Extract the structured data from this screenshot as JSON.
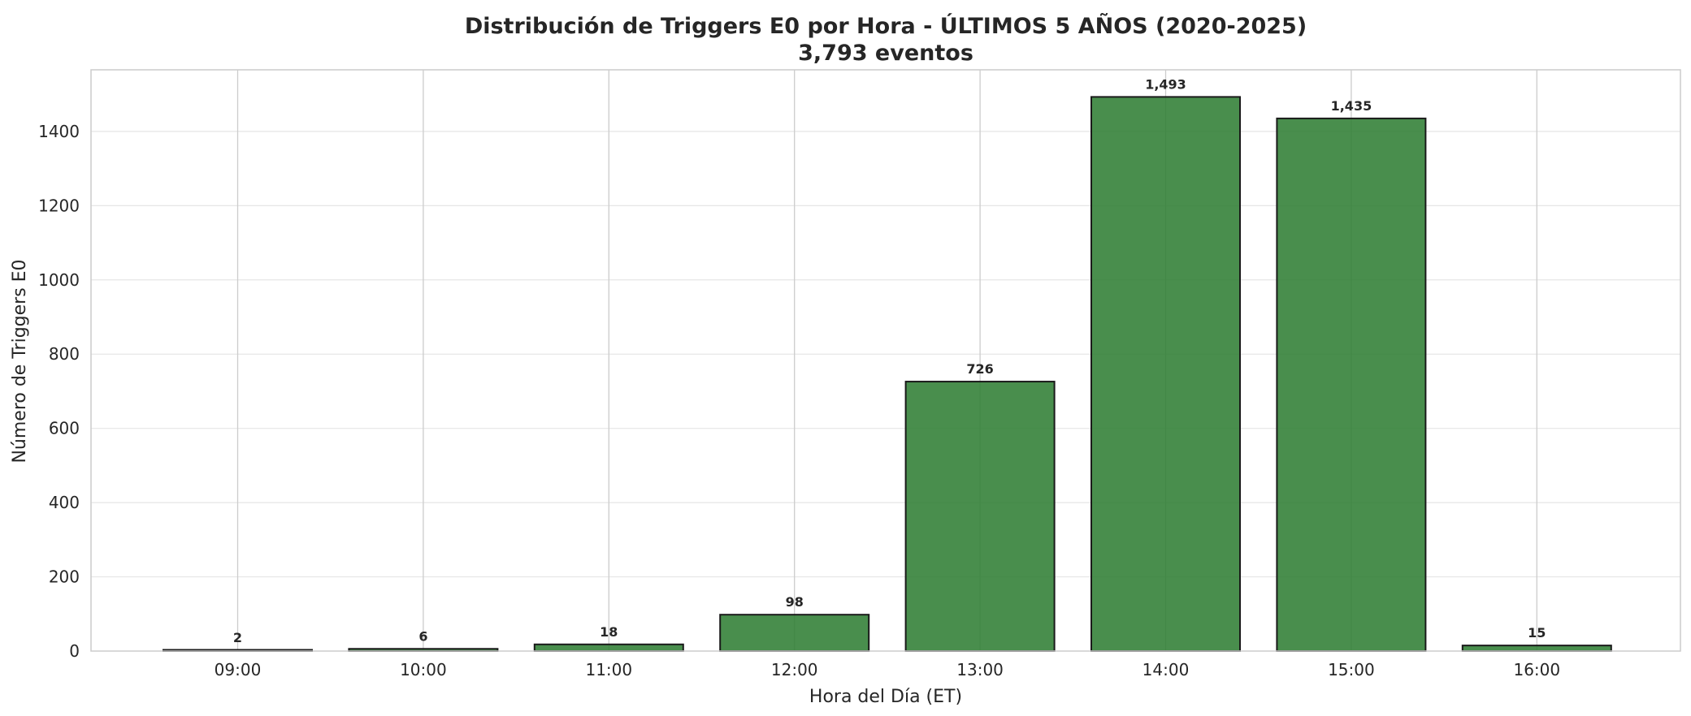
{
  "chart_data": {
    "type": "bar",
    "title": "Distribución de Triggers E0 por Hora - ÚLTIMOS 5 AÑOS (2020-2025)",
    "subtitle": "3,793 eventos",
    "xlabel": "Hora del Día (ET)",
    "ylabel": "Número de Triggers E0",
    "categories": [
      "09:00",
      "10:00",
      "11:00",
      "12:00",
      "13:00",
      "14:00",
      "15:00",
      "16:00"
    ],
    "values": [
      2,
      6,
      18,
      98,
      726,
      1493,
      1435,
      15
    ],
    "value_labels": [
      "2",
      "6",
      "18",
      "98",
      "726",
      "1,493",
      "1,435",
      "15"
    ],
    "ylim": [
      0,
      1566
    ],
    "yticks": [
      0,
      200,
      400,
      600,
      800,
      1000,
      1200,
      1400
    ],
    "grid": true,
    "legend": "none",
    "colors": {
      "bar_fill": "#2e7d32",
      "bar_stroke": "#1a1a1a",
      "grid": "#e6e6e6",
      "text": "#262626"
    }
  }
}
